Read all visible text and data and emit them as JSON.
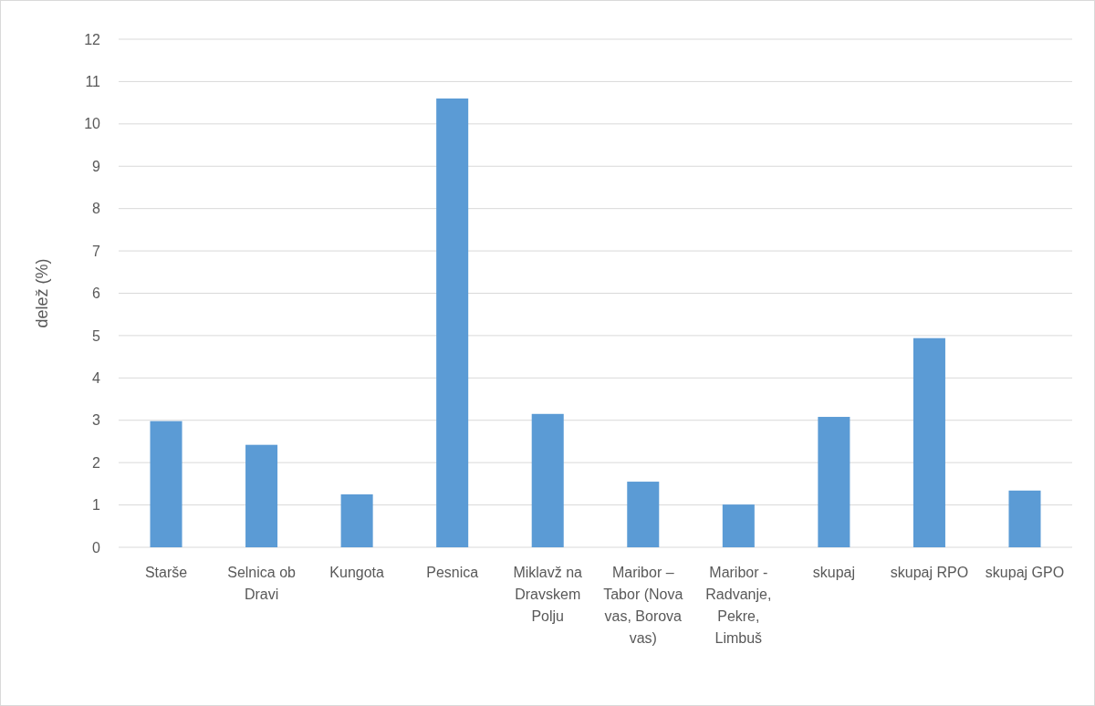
{
  "chart_data": {
    "type": "bar",
    "ylabel": "delež (%)",
    "categories": [
      "Starše",
      "Selnica ob Dravi",
      "Kungota",
      "Pesnica",
      "Miklavž na Dravskem Polju",
      "Maribor – Tabor (Nova vas, Borova vas)",
      "Maribor - Radvanje, Pekre, Limbuš",
      "skupaj",
      "skupaj RPO",
      "skupaj GPO"
    ],
    "values": [
      2.98,
      2.42,
      1.25,
      10.6,
      3.15,
      1.55,
      1.01,
      3.08,
      4.94,
      1.34
    ],
    "color": "#5b9bd5",
    "ylim": [
      0,
      12
    ],
    "yticks": [
      0,
      1,
      2,
      3,
      4,
      5,
      6,
      7,
      8,
      9,
      10,
      11,
      12
    ],
    "grid": "y"
  }
}
